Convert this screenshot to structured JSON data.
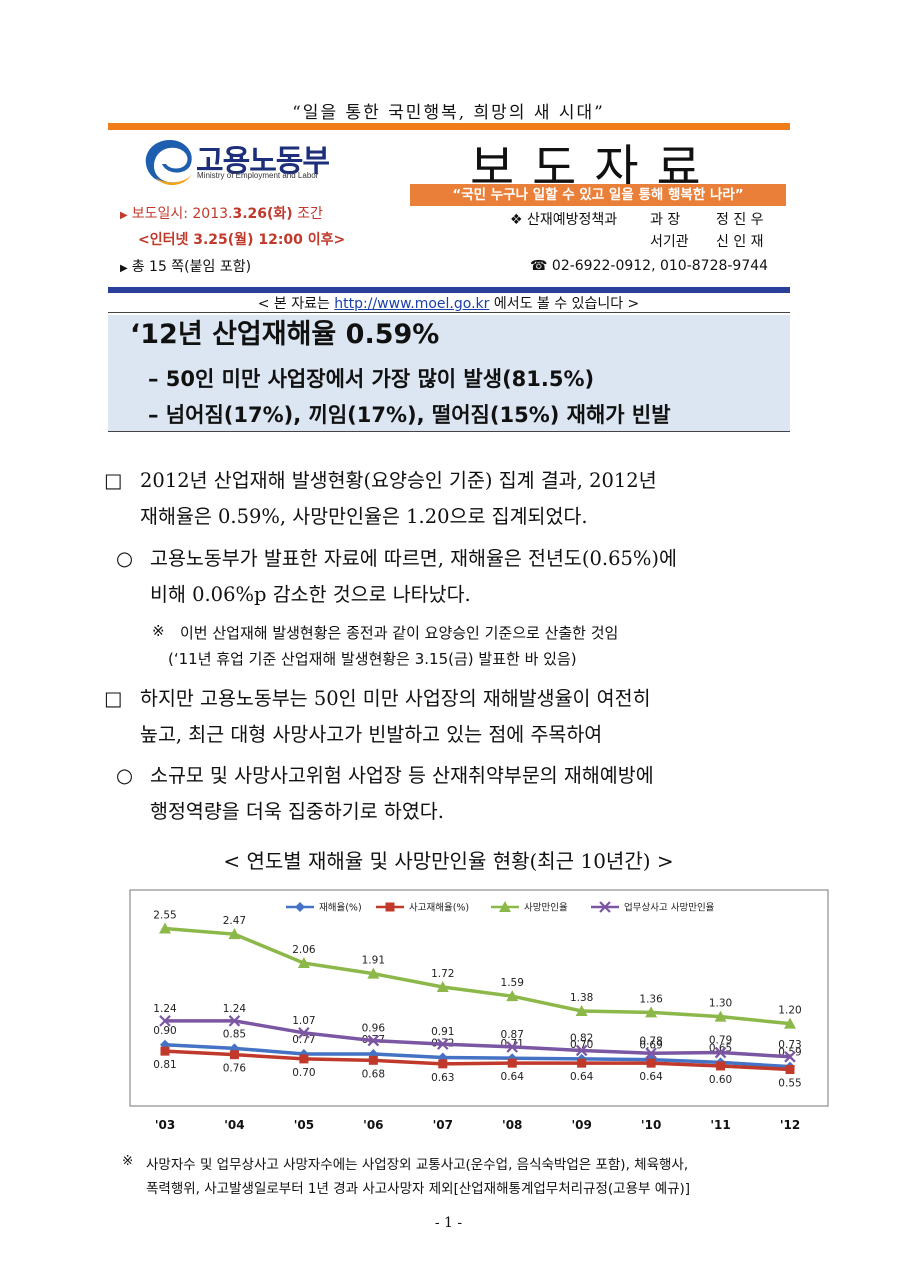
{
  "header": {
    "slogan": "“일을 통한 국민행복, 희망의 새 시대”",
    "logo_text": "고용노동부",
    "logo_subtext": "Ministry of Employment and Labor",
    "press_title": "보도자료",
    "motto": "“국민 누구나 일할 수 있고 일을 통해 행복한 나라”"
  },
  "release": {
    "date_label": "보도일시: 2013.",
    "date_bold": "3.26(화)",
    "date_suffix": " 조간",
    "internet": "<인터넷 3.25(월) 12:00 이후>",
    "pages": "총 15 쪽(붙임 포함)"
  },
  "contact": {
    "department": "산재예방정책과",
    "title1": "과 장",
    "name1": "정 진 우",
    "title2": "서기관",
    "name2": "신 인 재",
    "phone": "02-6922-0912, 010-8728-9744"
  },
  "website": {
    "prefix": "< 본 자료는 ",
    "url": "http://www.moel.go.kr",
    "suffix": " 에서도 볼 수 있습니다 >"
  },
  "headline": {
    "main": "‘12년 산업재해율 0.59%",
    "sub1": "– 50인 미만 사업장에서 가장 많이 발생(81.5%)",
    "sub2": "– 넘어짐(17%), 끼임(17%), 떨어짐(15%) 재해가 빈발"
  },
  "body": {
    "p1_marker": "□",
    "p1_line1": "2012년 산업재해 발생현황(요양승인 기준) 집계 결과, 2012년",
    "p1_line2": "재해율은 0.59%, 사망만인율은 1.20으로 집계되었다.",
    "p2_marker": "○",
    "p2_line1": "고용노동부가 발표한 자료에 따르면, 재해율은 전년도(0.65%)에",
    "p2_line2": "비해 0.06%p 감소한 것으로 나타났다.",
    "note_marker": "※",
    "note_line1": "이번 산업재해 발생현황은 종전과 같이 요양승인 기준으로 산출한 것임",
    "note_line2": "(‘11년 휴업 기준 산업재해 발생현황은 3.15(금) 발표한 바 있음)",
    "p3_marker": "□",
    "p3_line1": "하지만 고용노동부는 50인 미만 사업장의 재해발생율이 여전히",
    "p3_line2": "높고, 최근 대형 사망사고가 빈발하고 있는 점에 주목하여",
    "p4_marker": "○",
    "p4_line1": "소규모 및 사망사고위험 사업장 등 산재취약부문의 재해예방에",
    "p4_line2": "행정역량을 더욱 집중하기로 하였다."
  },
  "chart_title": "< 연도별 재해율 및 사망만인율 현황(최근 10년간) >",
  "chart_data": {
    "type": "line",
    "categories": [
      "'03",
      "'04",
      "'05",
      "'06",
      "'07",
      "'08",
      "'09",
      "'10",
      "'11",
      "'12"
    ],
    "series": [
      {
        "name": "재해율(%)",
        "color": "#4472c4",
        "marker": "diamond",
        "values": [
          0.9,
          0.85,
          0.77,
          0.77,
          0.72,
          0.71,
          0.7,
          0.69,
          0.65,
          0.59
        ],
        "labels": [
          "0.90",
          "0.85",
          "0.77",
          "0.77",
          "0.72",
          "0.71",
          "0.70",
          "0.69",
          "0.65",
          "0.59"
        ]
      },
      {
        "name": "사고재해율(%)",
        "color": "#c0392b",
        "marker": "square",
        "values": [
          0.81,
          0.76,
          0.7,
          0.68,
          0.63,
          0.64,
          0.64,
          0.64,
          0.6,
          0.55
        ],
        "labels": [
          "0.81",
          "0.76",
          "0.70",
          "0.68",
          "0.63",
          "0.64",
          "0.64",
          "0.64",
          "0.60",
          "0.55"
        ]
      },
      {
        "name": "사망만인율",
        "color": "#8cb84a",
        "marker": "triangle",
        "values": [
          2.55,
          2.47,
          2.06,
          1.91,
          1.72,
          1.59,
          1.38,
          1.36,
          1.3,
          1.2
        ],
        "labels": [
          "2.55",
          "2.47",
          "2.06",
          "1.91",
          "1.72",
          "1.59",
          "1.38",
          "1.36",
          "1.30",
          "1.20"
        ]
      },
      {
        "name": "업무상사고 사망만인율",
        "color": "#7b56a3",
        "marker": "x",
        "values": [
          1.24,
          1.24,
          1.07,
          0.96,
          0.91,
          0.87,
          0.82,
          0.78,
          0.79,
          0.73
        ],
        "labels": [
          "1.24",
          "1.24",
          "1.07",
          "0.96",
          "0.91",
          "0.87",
          "0.82",
          "0.78",
          "0.79",
          "0.73"
        ]
      }
    ],
    "legend": "top",
    "grid": false
  },
  "footnote": {
    "marker": "※",
    "line1": "사망자수 및 업무상사고 사망자수에는 사업장외 교통사고(운수업, 음식숙박업은 포함), 체육행사,",
    "line2": "폭력행위, 사고발생일로부터 1년 경과 사고사망자 제외[산업재해통계업무처리규정(고용부 예규)]"
  },
  "page_number": "- 1 -"
}
